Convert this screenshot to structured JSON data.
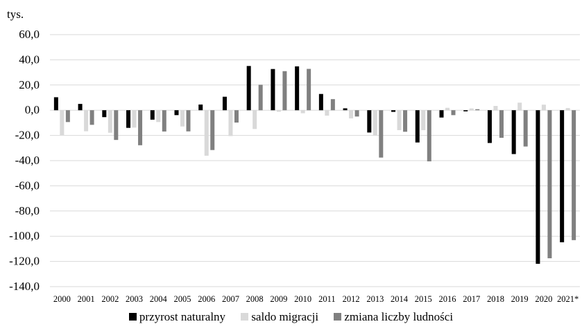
{
  "chart_data": {
    "type": "bar",
    "title": "",
    "unit_label": "tys.",
    "xlabel": "",
    "ylabel": "",
    "ylim": [
      -140,
      60
    ],
    "yticks": [
      60,
      40,
      20,
      0,
      -20,
      -40,
      -60,
      -80,
      -100,
      -120,
      -140
    ],
    "ytick_labels": [
      "60,0",
      "40,0",
      "20,0",
      "0,0",
      "-20,0",
      "-40,0",
      "-60,0",
      "-80,0",
      "-100,0",
      "-120,0",
      "-140,0"
    ],
    "grid": true,
    "legend_position": "bottom",
    "categories": [
      "2000",
      "2001",
      "2002",
      "2003",
      "2004",
      "2005",
      "2006",
      "2007",
      "2008",
      "2009",
      "2010",
      "2011",
      "2012",
      "2013",
      "2014",
      "2015",
      "2016",
      "2017",
      "2018",
      "2019",
      "2020",
      "2021*"
    ],
    "series": [
      {
        "name": "przyrost naturalny",
        "color": "#000000",
        "values": [
          10.3,
          5.0,
          -5.5,
          -14.0,
          -7.5,
          -3.9,
          4.5,
          10.7,
          35.1,
          32.7,
          34.8,
          12.9,
          1.5,
          -17.7,
          -1.3,
          -25.6,
          -5.8,
          -0.9,
          -26.0,
          -34.8,
          -121.9,
          -104.8
        ]
      },
      {
        "name": "saldo migracji",
        "color": "#d9d9d9",
        "values": [
          -19.7,
          -16.7,
          -17.9,
          -13.8,
          -9.4,
          -12.9,
          -36.1,
          -20.5,
          -14.9,
          -1.2,
          -2.4,
          -4.3,
          -6.5,
          -19.9,
          -15.8,
          -15.8,
          1.9,
          1.4,
          3.4,
          6.0,
          4.4,
          1.7
        ]
      },
      {
        "name": "zmiana liczby ludności",
        "color": "#808080",
        "values": [
          -9.4,
          -11.6,
          -23.6,
          -27.8,
          -16.9,
          -16.8,
          -31.6,
          -9.8,
          20.2,
          31.0,
          32.8,
          8.8,
          -5.0,
          -37.6,
          -17.1,
          -40.6,
          -3.9,
          0.8,
          -21.9,
          -28.8,
          -117.5,
          -103.1
        ]
      }
    ]
  }
}
